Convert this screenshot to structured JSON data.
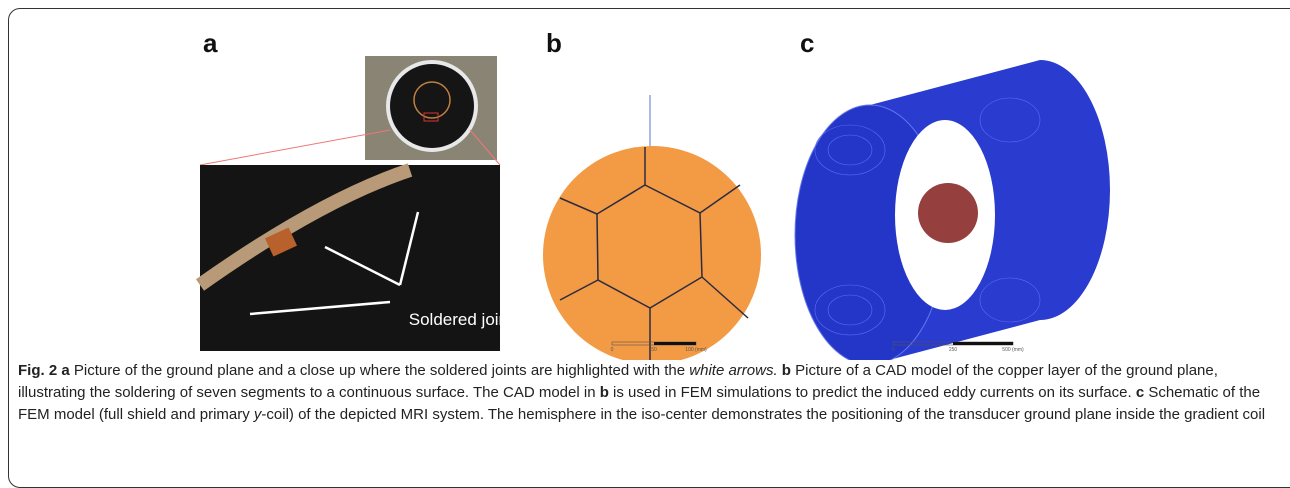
{
  "figure": {
    "panels": [
      {
        "label": "a",
        "annotation": "Soldered joints"
      },
      {
        "label": "b",
        "scale_labels": [
          "0",
          "50",
          "100 (mm)"
        ]
      },
      {
        "label": "c",
        "scale_labels": [
          "0",
          "250",
          "500 (mm)"
        ]
      }
    ],
    "caption": [
      {
        "text": "Fig. 2",
        "style": "bold"
      },
      {
        "text": " ",
        "style": "normal"
      },
      {
        "text": "a",
        "style": "bold"
      },
      {
        "text": " Picture of the ground plane and a close up where the soldered joints are highlighted with the ",
        "style": "normal"
      },
      {
        "text": "white arrows.",
        "style": "italic"
      },
      {
        "text": " ",
        "style": "normal"
      },
      {
        "text": "b",
        "style": "bold"
      },
      {
        "text": " Picture of a CAD model of the copper layer of the ground plane, illustrating the soldering of seven segments to a continuous surface. The CAD model in ",
        "style": "normal"
      },
      {
        "text": "b",
        "style": "bold"
      },
      {
        "text": " is used in FEM simulations to predict the induced eddy currents on its surface. ",
        "style": "normal"
      },
      {
        "text": "c",
        "style": "bold"
      },
      {
        "text": " Schematic of the FEM model (full shield and primary ",
        "style": "normal"
      },
      {
        "text": "y",
        "style": "italic"
      },
      {
        "text": "-coil) of the depicted MRI system. The hemisphere in the iso-center demonstrates the positioning of the transducer ground plane inside the gradient coil",
        "style": "normal"
      }
    ]
  }
}
